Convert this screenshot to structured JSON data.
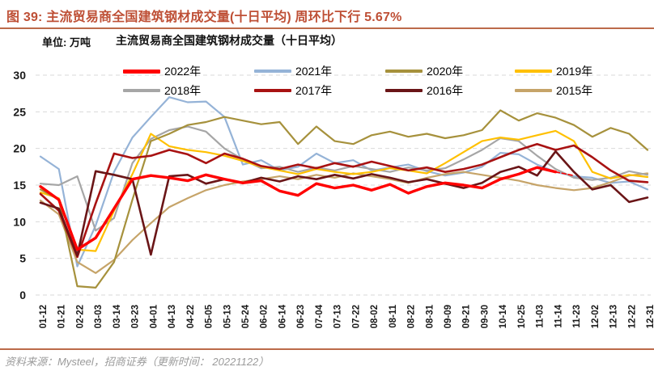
{
  "figure": {
    "title": "图 39:  主流贸易商全国建筑钢材成交量(十日平均) 周环比下行 5.67%"
  },
  "unit_label": "单位: 万吨",
  "chart_title": "主流贸易商全国建筑钢材成交量（十日平均）",
  "footer": {
    "source_text": "资料来源：Mysteel，招商证券（更新时间： 20221122）"
  },
  "colors": {
    "title_text": "#BE4F35",
    "accent_rule": "#BC6A4A",
    "footer_text": "#9B9B9B",
    "gridline": "#D9D9D9",
    "axis_text": "#1A1A1A"
  },
  "chart_data": {
    "type": "line",
    "title": "主流贸易商全国建筑钢材成交量（十日平均）",
    "ylabel": "万吨",
    "ylim": [
      0,
      30
    ],
    "y_ticks": [
      0,
      5,
      10,
      15,
      20,
      25,
      30
    ],
    "grid": "horizontal-dashed",
    "legend_position": "top",
    "categories": [
      "01-12",
      "01-21",
      "02-22",
      "03-03",
      "03-14",
      "03-23",
      "04-01",
      "04-13",
      "04-22",
      "05-05",
      "05-13",
      "05-24",
      "06-02",
      "06-14",
      "06-23",
      "07-04",
      "07-13",
      "07-22",
      "08-02",
      "08-11",
      "08-22",
      "08-31",
      "09-09",
      "09-21",
      "09-30",
      "10-14",
      "10-25",
      "11-03",
      "11-14",
      "11-23",
      "12-02",
      "12-13",
      "12-22",
      "12-31"
    ],
    "series": [
      {
        "name": "2022年",
        "color": "#FF0000",
        "width": 3.4,
        "tail_dashed_from": 28,
        "values": [
          14.8,
          13.0,
          6.2,
          7.8,
          11.8,
          15.8,
          16.3,
          16.0,
          15.6,
          16.4,
          15.8,
          15.3,
          15.6,
          14.2,
          13.6,
          15.2,
          14.6,
          15.0,
          14.3,
          15.1,
          13.9,
          14.8,
          15.3,
          15.0,
          14.6,
          15.8,
          16.5,
          17.4,
          16.8,
          16.3,
          null,
          null,
          null,
          null
        ]
      },
      {
        "name": "2021年",
        "color": "#95B3D7",
        "width": 2.2,
        "tail_dashed_from": null,
        "values": [
          18.9,
          17.2,
          3.9,
          9.5,
          16.8,
          21.5,
          24.3,
          27.0,
          26.3,
          26.4,
          24.3,
          17.8,
          18.4,
          17.0,
          17.5,
          19.3,
          18.0,
          18.4,
          17.0,
          17.4,
          17.8,
          16.9,
          16.3,
          16.7,
          17.5,
          19.4,
          19.2,
          17.8,
          16.8,
          16.2,
          16.0,
          15.3,
          15.5,
          14.4
        ]
      },
      {
        "name": "2020年",
        "color": "#A6913C",
        "width": 2.2,
        "tail_dashed_from": null,
        "values": [
          14.4,
          13.0,
          1.2,
          1.0,
          4.5,
          13.0,
          21.0,
          22.0,
          23.2,
          23.6,
          24.3,
          23.8,
          23.3,
          23.6,
          20.6,
          23.0,
          21.0,
          20.6,
          21.8,
          22.3,
          21.6,
          22.0,
          21.4,
          21.8,
          22.5,
          25.2,
          23.8,
          24.8,
          24.2,
          23.2,
          21.6,
          22.8,
          22.0,
          19.8
        ]
      },
      {
        "name": "2019年",
        "color": "#FFC000",
        "width": 2.2,
        "tail_dashed_from": null,
        "values": [
          14.0,
          13.2,
          6.2,
          6.0,
          11.5,
          16.5,
          22.0,
          20.3,
          19.8,
          19.5,
          19.0,
          18.3,
          17.5,
          17.0,
          16.5,
          17.2,
          16.8,
          16.5,
          16.8,
          17.3,
          17.0,
          16.6,
          18.0,
          19.5,
          21.0,
          21.5,
          21.2,
          21.8,
          22.4,
          21.0,
          16.8,
          15.9,
          16.4,
          16.1
        ]
      },
      {
        "name": "2018年",
        "color": "#A6A6A6",
        "width": 2.2,
        "tail_dashed_from": null,
        "values": [
          15.2,
          15.0,
          16.2,
          8.8,
          10.5,
          18.0,
          21.3,
          22.5,
          23.0,
          22.3,
          20.0,
          18.5,
          17.3,
          17.5,
          16.8,
          17.4,
          17.0,
          17.6,
          17.2,
          16.8,
          17.4,
          17.0,
          17.3,
          18.5,
          19.8,
          21.4,
          21.0,
          19.0,
          17.2,
          16.0,
          15.7,
          16.0,
          16.9,
          16.4
        ]
      },
      {
        "name": "2017年",
        "color": "#A81212",
        "width": 2.6,
        "tail_dashed_from": null,
        "values": [
          13.8,
          11.5,
          5.2,
          12.5,
          19.3,
          18.7,
          19.0,
          19.8,
          19.2,
          18.0,
          19.3,
          18.6,
          17.6,
          17.2,
          17.8,
          17.3,
          18.0,
          17.5,
          18.2,
          17.6,
          17.0,
          17.4,
          16.8,
          17.2,
          17.8,
          18.8,
          19.8,
          20.6,
          19.8,
          20.4,
          18.8,
          17.0,
          15.6,
          15.4
        ]
      },
      {
        "name": "2016年",
        "color": "#6A1517",
        "width": 2.6,
        "tail_dashed_from": null,
        "values": [
          12.6,
          11.8,
          5.4,
          16.9,
          16.4,
          15.8,
          5.5,
          16.2,
          16.4,
          15.2,
          15.8,
          15.3,
          16.0,
          15.5,
          16.2,
          15.8,
          16.4,
          15.9,
          16.5,
          16.0,
          15.4,
          15.8,
          15.2,
          14.6,
          15.3,
          16.8,
          17.5,
          16.3,
          19.6,
          16.8,
          14.4,
          15.0,
          12.7,
          13.3
        ]
      },
      {
        "name": "2015年",
        "color": "#C6A469",
        "width": 2.2,
        "tail_dashed_from": null,
        "values": [
          12.9,
          11.0,
          4.5,
          3.0,
          4.8,
          7.5,
          9.8,
          12.0,
          13.2,
          14.3,
          15.0,
          15.5,
          15.8,
          16.2,
          15.8,
          16.4,
          16.0,
          16.6,
          16.2,
          15.8,
          15.3,
          16.0,
          16.5,
          16.8,
          16.4,
          16.0,
          15.6,
          15.0,
          14.6,
          14.3,
          14.6,
          15.4,
          16.3,
          16.6
        ]
      }
    ]
  }
}
